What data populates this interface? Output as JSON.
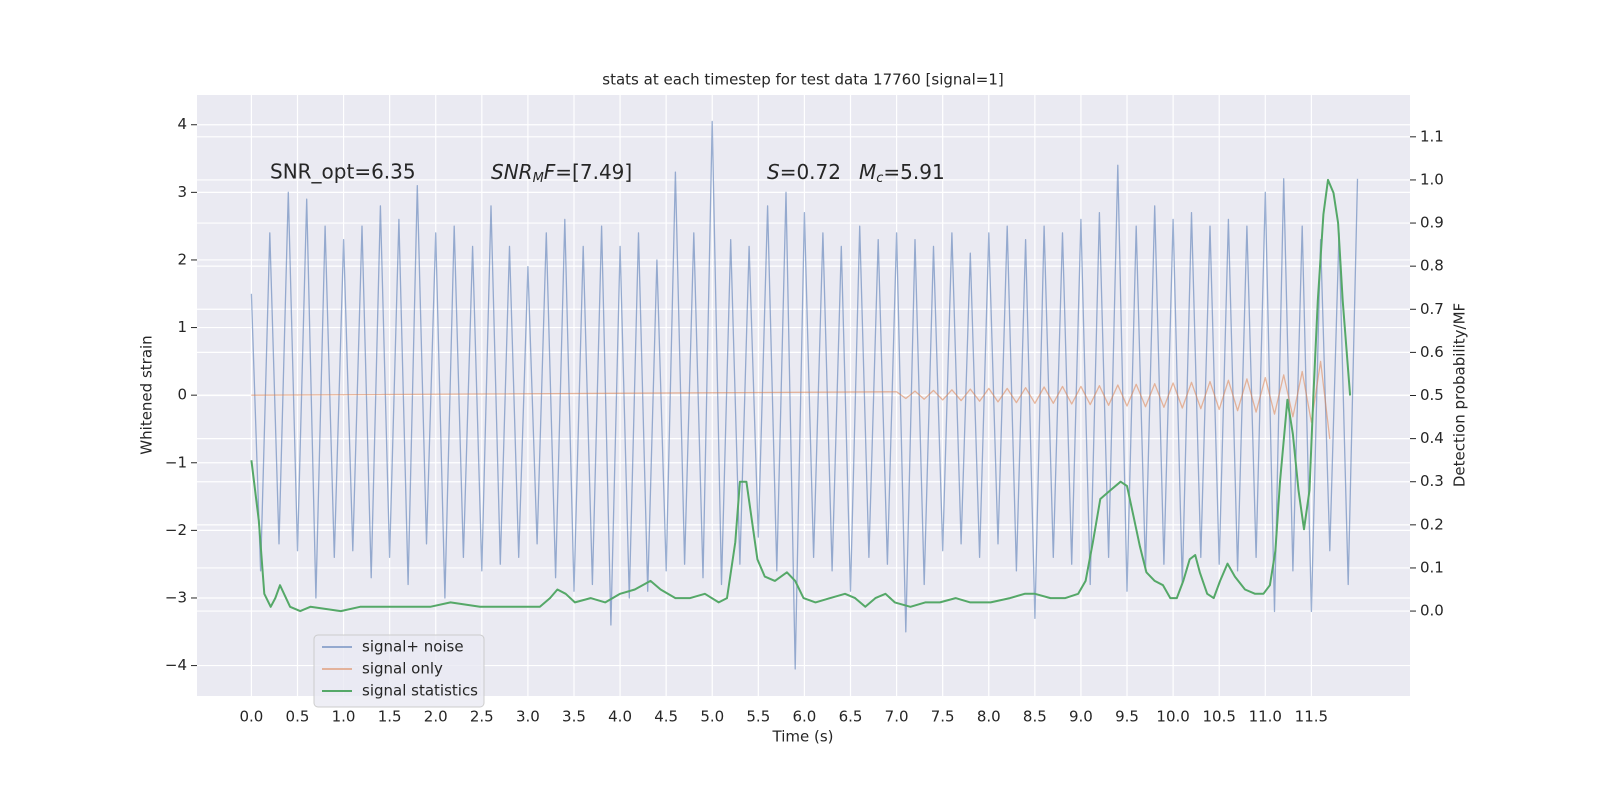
{
  "chart_data": {
    "type": "line",
    "title": "stats at each timestep for test data 17760 [signal=1]",
    "xlabel": "Time (s)",
    "ylabel": "Whitened strain",
    "y2label": "Detection probability/MF",
    "annotations": [
      "SNR_opt=6.35",
      [
        "SNR",
        "M",
        "F",
        "=[7.49]"
      ],
      [
        "S",
        "=0.72",
        "M",
        "c",
        "=5.91"
      ]
    ],
    "xlim": [
      -0.59,
      12.57
    ],
    "xticks": [
      {
        "value": 0,
        "label": "0.0"
      },
      0.5,
      {
        "value": 1,
        "label": "1.0"
      },
      1.5,
      {
        "value": 2,
        "label": "2.0"
      },
      2.5,
      {
        "value": 3,
        "label": "3.0"
      },
      3.5,
      {
        "value": 4,
        "label": "4.0"
      },
      4.5,
      {
        "value": 5,
        "label": "5.0"
      },
      5.5,
      {
        "value": 6,
        "label": "6.0"
      },
      6.5,
      {
        "value": 7,
        "label": "7.0"
      },
      7.5,
      {
        "value": 8,
        "label": "8.0"
      },
      8.5,
      {
        "value": 9,
        "label": "9.0"
      },
      9.5,
      {
        "value": 10,
        "label": "10.0"
      },
      10.5,
      {
        "value": 11,
        "label": "11.0"
      },
      11.5
    ],
    "ylim": [
      -4.45,
      4.44
    ],
    "yticks": [
      {
        "value": -4,
        "label": "−4"
      },
      {
        "value": -3,
        "label": "−3"
      },
      {
        "value": -2,
        "label": "−2"
      },
      {
        "value": -1,
        "label": "−1"
      },
      0,
      1,
      2,
      3,
      4
    ],
    "y2lim": [
      -0.197,
      1.197
    ],
    "y2ticks": [
      {
        "value": 0,
        "label": "0.0"
      },
      0.1,
      0.2,
      0.3,
      0.4,
      0.5,
      0.6,
      0.7,
      0.8,
      0.9,
      {
        "value": 1,
        "label": "1.0"
      },
      1.1
    ],
    "grid": true,
    "legend": "lower left",
    "series": [
      {
        "name": "signal+ noise",
        "color": "#4c72b0",
        "x": [
          0,
          0.1,
          0.2,
          0.3,
          0.4,
          0.5,
          0.6,
          0.7,
          0.8,
          0.9,
          1,
          1.1,
          1.2,
          1.3,
          1.4,
          1.5,
          1.6,
          1.7,
          1.8,
          1.9,
          2,
          2.1,
          2.2,
          2.3,
          2.4,
          2.5,
          2.6,
          2.7,
          2.8,
          2.9,
          3,
          3.1,
          3.2,
          3.3,
          3.4,
          3.5,
          3.6,
          3.7,
          3.8,
          3.9,
          4,
          4.1,
          4.2,
          4.3,
          4.4,
          4.5,
          4.6,
          4.7,
          4.8,
          4.9,
          5,
          5.1,
          5.2,
          5.3,
          5.4,
          5.5,
          5.6,
          5.7,
          5.8,
          5.9,
          6,
          6.1,
          6.2,
          6.3,
          6.4,
          6.5,
          6.6,
          6.7,
          6.8,
          6.9,
          7,
          7.1,
          7.2,
          7.3,
          7.4,
          7.5,
          7.6,
          7.7,
          7.8,
          7.9,
          8,
          8.1,
          8.2,
          8.3,
          8.4,
          8.5,
          8.6,
          8.7,
          8.8,
          8.9,
          9,
          9.1,
          9.2,
          9.3,
          9.4,
          9.5,
          9.6,
          9.7,
          9.8,
          9.9,
          10,
          10.1,
          10.2,
          10.3,
          10.4,
          10.5,
          10.6,
          10.7,
          10.8,
          10.9,
          11,
          11.1,
          11.2,
          11.3,
          11.4,
          11.5,
          11.6,
          11.7,
          11.8,
          11.9,
          12
        ],
        "values": [
          1.5,
          -2.6,
          2.4,
          -2.2,
          3.0,
          -2.3,
          2.9,
          -3.0,
          2.5,
          -2.4,
          2.3,
          -2.3,
          2.5,
          -2.7,
          2.8,
          -2.4,
          2.6,
          -2.8,
          3.1,
          -2.2,
          2.4,
          -3.0,
          2.5,
          -2.4,
          2.2,
          -2.6,
          2.8,
          -2.5,
          2.2,
          -2.4,
          1.9,
          -2.2,
          2.4,
          -2.7,
          2.6,
          -2.9,
          2.2,
          -2.8,
          2.5,
          -3.4,
          2.2,
          -3.0,
          2.4,
          -2.9,
          2.0,
          -2.6,
          3.3,
          -2.5,
          2.4,
          -2.7,
          4.05,
          -2.8,
          2.3,
          -2.5,
          2.2,
          -2.1,
          2.8,
          -2.6,
          3.0,
          -4.05,
          2.7,
          -2.4,
          2.4,
          -2.6,
          2.2,
          -2.9,
          2.5,
          -2.4,
          2.3,
          -2.5,
          2.4,
          -3.5,
          2.3,
          -2.8,
          2.2,
          -2.3,
          2.4,
          -2.2,
          2.1,
          -2.4,
          2.4,
          -2.2,
          2.5,
          -2.6,
          2.3,
          -3.3,
          2.5,
          -2.4,
          2.4,
          -2.5,
          2.6,
          -2.8,
          2.7,
          -2.4,
          3.4,
          -2.9,
          2.5,
          -2.6,
          2.8,
          -2.5,
          2.6,
          -2.8,
          2.7,
          -2.4,
          2.5,
          -2.5,
          2.6,
          -2.6,
          2.5,
          -2.4,
          3.0,
          -3.2,
          3.2,
          -2.6,
          2.5,
          -3.2,
          2.3,
          -2.3,
          2.4,
          -2.8,
          3.2
        ]
      },
      {
        "name": "signal only",
        "color": "#dd8452",
        "x": [
          0,
          7,
          7.1,
          7.2,
          7.3,
          7.4,
          7.5,
          7.6,
          7.7,
          7.8,
          7.9,
          8,
          8.1,
          8.2,
          8.3,
          8.4,
          8.5,
          8.6,
          8.7,
          8.8,
          8.9,
          9,
          9.1,
          9.2,
          9.3,
          9.4,
          9.5,
          9.6,
          9.7,
          9.8,
          9.9,
          10,
          10.1,
          10.2,
          10.3,
          10.4,
          10.5,
          10.6,
          10.7,
          10.8,
          10.9,
          11,
          11.1,
          11.2,
          11.3,
          11.4,
          11.5,
          11.6,
          11.7
        ],
        "values": [
          0,
          0.05,
          -0.05,
          0.06,
          -0.06,
          0.07,
          -0.07,
          0.08,
          -0.08,
          0.09,
          -0.09,
          0.1,
          -0.1,
          0.1,
          -0.11,
          0.11,
          -0.12,
          0.12,
          -0.12,
          0.13,
          -0.13,
          0.13,
          -0.14,
          0.14,
          -0.15,
          0.15,
          -0.16,
          0.16,
          -0.17,
          0.17,
          -0.18,
          0.18,
          -0.19,
          0.19,
          -0.2,
          0.2,
          -0.21,
          0.22,
          -0.23,
          0.24,
          -0.25,
          0.26,
          -0.28,
          0.3,
          -0.32,
          0.35,
          -0.4,
          0.5,
          -0.65
        ]
      },
      {
        "name": "signal statistics",
        "color": "#55a868",
        "axis": "y2",
        "x": [
          0,
          0.08,
          0.14,
          0.21,
          0.26,
          0.31,
          0.42,
          0.53,
          0.64,
          0.97,
          1.18,
          1.4,
          1.62,
          1.94,
          2.16,
          2.48,
          2.81,
          3.13,
          3.24,
          3.32,
          3.41,
          3.51,
          3.68,
          3.84,
          4.0,
          4.16,
          4.33,
          4.44,
          4.6,
          4.76,
          4.92,
          5.07,
          5.16,
          5.25,
          5.3,
          5.37,
          5.43,
          5.49,
          5.57,
          5.68,
          5.81,
          5.9,
          5.99,
          6.12,
          6.28,
          6.44,
          6.55,
          6.66,
          6.77,
          6.88,
          6.98,
          7.15,
          7.31,
          7.47,
          7.64,
          7.8,
          8.02,
          8.23,
          8.39,
          8.5,
          8.67,
          8.83,
          8.97,
          9.05,
          9.13,
          9.21,
          9.32,
          9.43,
          9.5,
          9.57,
          9.64,
          9.71,
          9.8,
          9.89,
          9.97,
          10.04,
          10.11,
          10.18,
          10.24,
          10.29,
          10.37,
          10.44,
          10.51,
          10.59,
          10.67,
          10.78,
          10.89,
          10.98,
          11.05,
          11.11,
          11.16,
          11.24,
          11.3,
          11.36,
          11.42,
          11.48,
          11.52,
          11.57,
          11.63,
          11.68,
          11.74,
          11.79,
          11.84,
          11.92
        ],
        "values": [
          0.35,
          0.21,
          0.04,
          0.01,
          0.03,
          0.06,
          0.01,
          0.0,
          0.01,
          0.0,
          0.01,
          0.01,
          0.01,
          0.01,
          0.02,
          0.01,
          0.01,
          0.01,
          0.03,
          0.05,
          0.04,
          0.02,
          0.03,
          0.02,
          0.04,
          0.05,
          0.07,
          0.05,
          0.03,
          0.03,
          0.04,
          0.02,
          0.03,
          0.16,
          0.3,
          0.3,
          0.21,
          0.12,
          0.08,
          0.07,
          0.09,
          0.07,
          0.03,
          0.02,
          0.03,
          0.04,
          0.03,
          0.01,
          0.03,
          0.04,
          0.02,
          0.01,
          0.02,
          0.02,
          0.03,
          0.02,
          0.02,
          0.03,
          0.04,
          0.04,
          0.03,
          0.03,
          0.04,
          0.07,
          0.16,
          0.26,
          0.28,
          0.3,
          0.29,
          0.22,
          0.15,
          0.09,
          0.07,
          0.06,
          0.03,
          0.03,
          0.07,
          0.12,
          0.13,
          0.09,
          0.04,
          0.03,
          0.07,
          0.11,
          0.08,
          0.05,
          0.04,
          0.04,
          0.06,
          0.14,
          0.3,
          0.49,
          0.41,
          0.28,
          0.19,
          0.28,
          0.49,
          0.72,
          0.92,
          1.0,
          0.97,
          0.9,
          0.72,
          0.5
        ]
      }
    ]
  }
}
